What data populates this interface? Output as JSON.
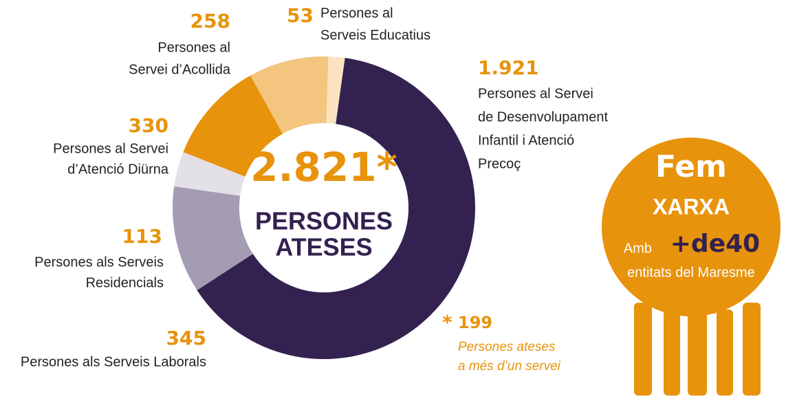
{
  "chart_data": {
    "type": "donut",
    "categories": [
      [
        "Persones al Servei",
        "de Desenvolupament",
        "Infantil i Atenció",
        "Precoç"
      ],
      [
        "Persones als Serveis Laborals"
      ],
      [
        "Persones als Serveis",
        "Residencials"
      ],
      [
        "Persones al Servei",
        "d’Atenció Diürna"
      ],
      [
        "Persones al",
        "Servei d’Acollida"
      ],
      [
        "Persones al",
        "Serveis Educatius"
      ]
    ],
    "values": [
      1921,
      345,
      113,
      330,
      258,
      53
    ],
    "value_labels": [
      "1.921",
      "345",
      "113",
      "330",
      "258",
      "53"
    ],
    "colors": [
      "#33214f",
      "#a39cb3",
      "#e3e0e8",
      "#e8930c",
      "#f3c57e",
      "#fbe3c0"
    ],
    "center_title": "2.821*",
    "center_subtitle": [
      "PERSONES",
      "ATESES"
    ],
    "note": {
      "marker": "*",
      "value_label": "199",
      "lines": [
        "Persones ateses",
        "a més d’un servei"
      ]
    }
  },
  "badge": {
    "title": "Fem",
    "subtitle": "XARXA",
    "prefix": "Amb",
    "highlight": "+de40",
    "caption": "entitats del Maresme"
  }
}
